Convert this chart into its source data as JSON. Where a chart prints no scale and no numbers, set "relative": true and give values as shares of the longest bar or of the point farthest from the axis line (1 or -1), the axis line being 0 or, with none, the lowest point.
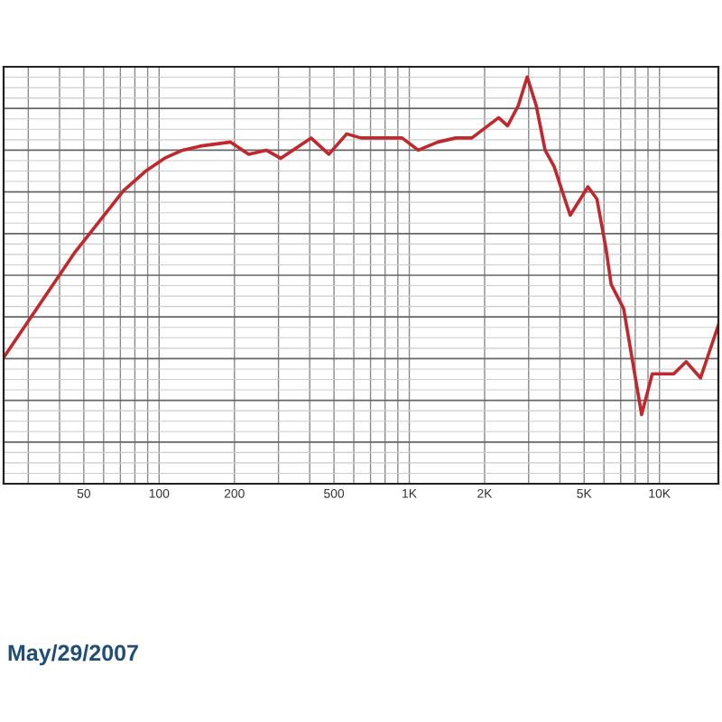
{
  "chart_data": {
    "type": "line",
    "relative": true,
    "log": "x",
    "x": [
      23.9,
      46.2,
      72,
      89,
      105,
      124,
      146,
      193,
      228,
      268,
      306,
      405,
      477,
      562,
      641,
      794,
      936,
      1086,
      1301,
      1534,
      1778,
      2276,
      2471,
      2729,
      2960,
      3215,
      3491,
      3790,
      4396,
      5179,
      5623,
      6105,
      6412,
      7194,
      8486,
      9360,
      10170,
      11400,
      12790,
      14590,
      17200
    ],
    "series": [
      {
        "color": "#c0282d",
        "values": [
          0.31,
          0.57,
          0.72,
          0.77,
          0.8,
          0.82,
          0.83,
          0.84,
          0.81,
          0.82,
          0.8,
          0.85,
          0.81,
          0.86,
          0.85,
          0.85,
          0.85,
          0.82,
          0.84,
          0.85,
          0.85,
          0.9,
          0.88,
          0.93,
          1.0,
          0.93,
          0.82,
          0.78,
          0.66,
          0.73,
          0.7,
          0.58,
          0.49,
          0.43,
          0.17,
          0.27,
          0.27,
          0.27,
          0.3,
          0.26,
          0.39
        ]
      }
    ],
    "xlim": [
      23.9,
      17200
    ],
    "xticks": [
      50,
      100,
      200,
      500,
      {
        "value": 1000,
        "label": "1K"
      },
      {
        "value": 2000,
        "label": "2K"
      },
      {
        "value": 5000,
        "label": "5K"
      },
      {
        "value": 10000,
        "label": "10K"
      }
    ],
    "grid": true,
    "marker": "none",
    "line_style": "solid",
    "legend": false,
    "annotations": [
      "May/29/2007"
    ]
  }
}
